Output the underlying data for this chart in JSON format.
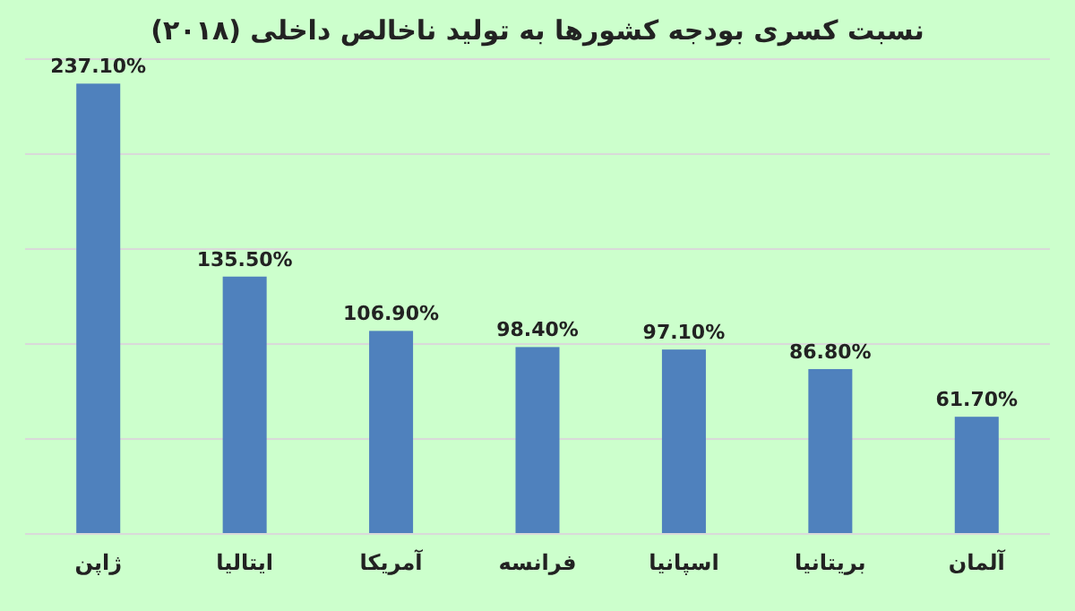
{
  "chart_data": {
    "type": "bar",
    "title": "نسبت کسری بودجه کشورها به تولید ناخالص داخلی (۲۰۱۸)",
    "categories": [
      "ژاپن",
      "ایتالیا",
      "آمریکا",
      "فرانسه",
      "اسپانیا",
      "بریتانیا",
      "آلمان"
    ],
    "values": [
      237.1,
      135.5,
      106.9,
      98.4,
      97.1,
      86.8,
      61.7
    ],
    "value_labels": [
      "237.10%",
      "135.50%",
      "106.90%",
      "98.40%",
      "97.10%",
      "86.80%",
      "61.70%"
    ],
    "color": "#4f81bd",
    "ylim": [
      0,
      250
    ],
    "yticks": [
      {
        "value": 0,
        "label": null
      },
      {
        "value": 50,
        "label": null
      },
      {
        "value": 100,
        "label": null
      },
      {
        "value": 150,
        "label": null
      },
      {
        "value": 200,
        "label": null
      },
      {
        "value": 250,
        "label": null
      }
    ],
    "grid": "y",
    "tick_labels": "x"
  }
}
